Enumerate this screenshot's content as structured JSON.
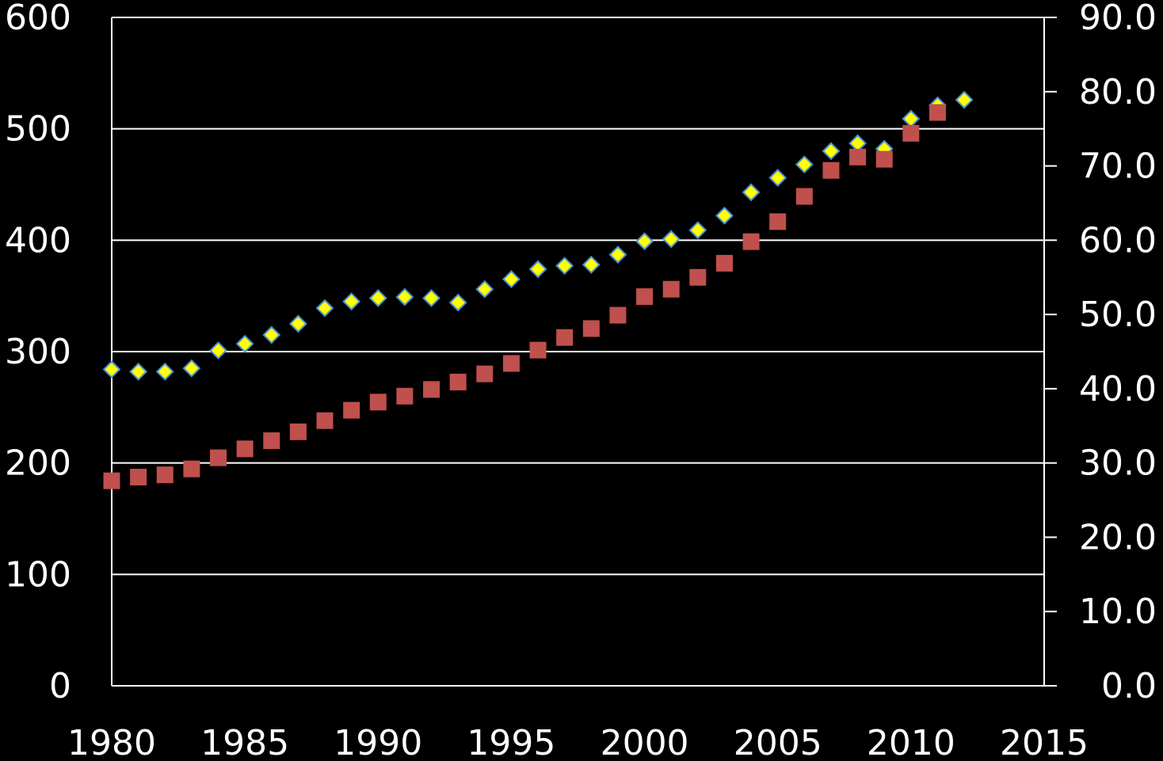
{
  "chart_data": {
    "type": "scatter",
    "background": "#000000",
    "title": "",
    "xlabel": "",
    "ylabel": "",
    "y2label": "",
    "grid": true,
    "legend": "none",
    "xlim": [
      1980,
      2015
    ],
    "ylim": [
      0,
      600
    ],
    "y2lim": [
      0,
      90
    ],
    "x_ticks": [
      "1980",
      "1985",
      "1990",
      "1995",
      "2000",
      "2005",
      "2010",
      "2015"
    ],
    "y_ticks": [
      "0",
      "100",
      "200",
      "300",
      "400",
      "500",
      "600"
    ],
    "y2_ticks": [
      "0.0",
      "10.0",
      "20.0",
      "30.0",
      "40.0",
      "50.0",
      "60.0",
      "70.0",
      "80.0",
      "90.0"
    ],
    "series": [
      {
        "axis": "left",
        "marker": "diamond",
        "color": "#ffff00",
        "edge_color": "#4a90d9",
        "x": [
          1980,
          1981,
          1982,
          1983,
          1984,
          1985,
          1986,
          1987,
          1988,
          1989,
          1990,
          1991,
          1992,
          1993,
          1994,
          1995,
          1996,
          1997,
          1998,
          1999,
          2000,
          2001,
          2002,
          2003,
          2004,
          2005,
          2006,
          2007,
          2008,
          2009,
          2010,
          2011,
          2012
        ],
        "values": [
          284,
          282,
          282,
          285,
          301,
          307,
          315,
          325,
          339,
          345,
          348,
          349,
          348,
          344,
          356,
          365,
          374,
          377,
          378,
          387,
          399,
          401,
          409,
          422,
          443,
          456,
          468,
          480,
          487,
          482,
          509,
          521,
          526
        ]
      },
      {
        "axis": "right",
        "marker": "square",
        "color": "#c0504d",
        "edge_color": "#c0504d",
        "x": [
          1980,
          1981,
          1982,
          1983,
          1984,
          1985,
          1986,
          1987,
          1988,
          1989,
          1990,
          1991,
          1992,
          1993,
          1994,
          1995,
          1996,
          1997,
          1998,
          1999,
          2000,
          2001,
          2002,
          2003,
          2004,
          2005,
          2006,
          2007,
          2008,
          2009,
          2010,
          2011
        ],
        "values": [
          27.6,
          28.1,
          28.4,
          29.2,
          30.7,
          31.9,
          33.0,
          34.2,
          35.7,
          37.1,
          38.2,
          39.0,
          39.9,
          40.9,
          42.0,
          43.4,
          45.2,
          46.9,
          48.1,
          49.9,
          52.4,
          53.4,
          55.0,
          56.9,
          59.8,
          62.5,
          65.9,
          69.4,
          71.2,
          70.9,
          74.4,
          77.2
        ]
      }
    ]
  }
}
